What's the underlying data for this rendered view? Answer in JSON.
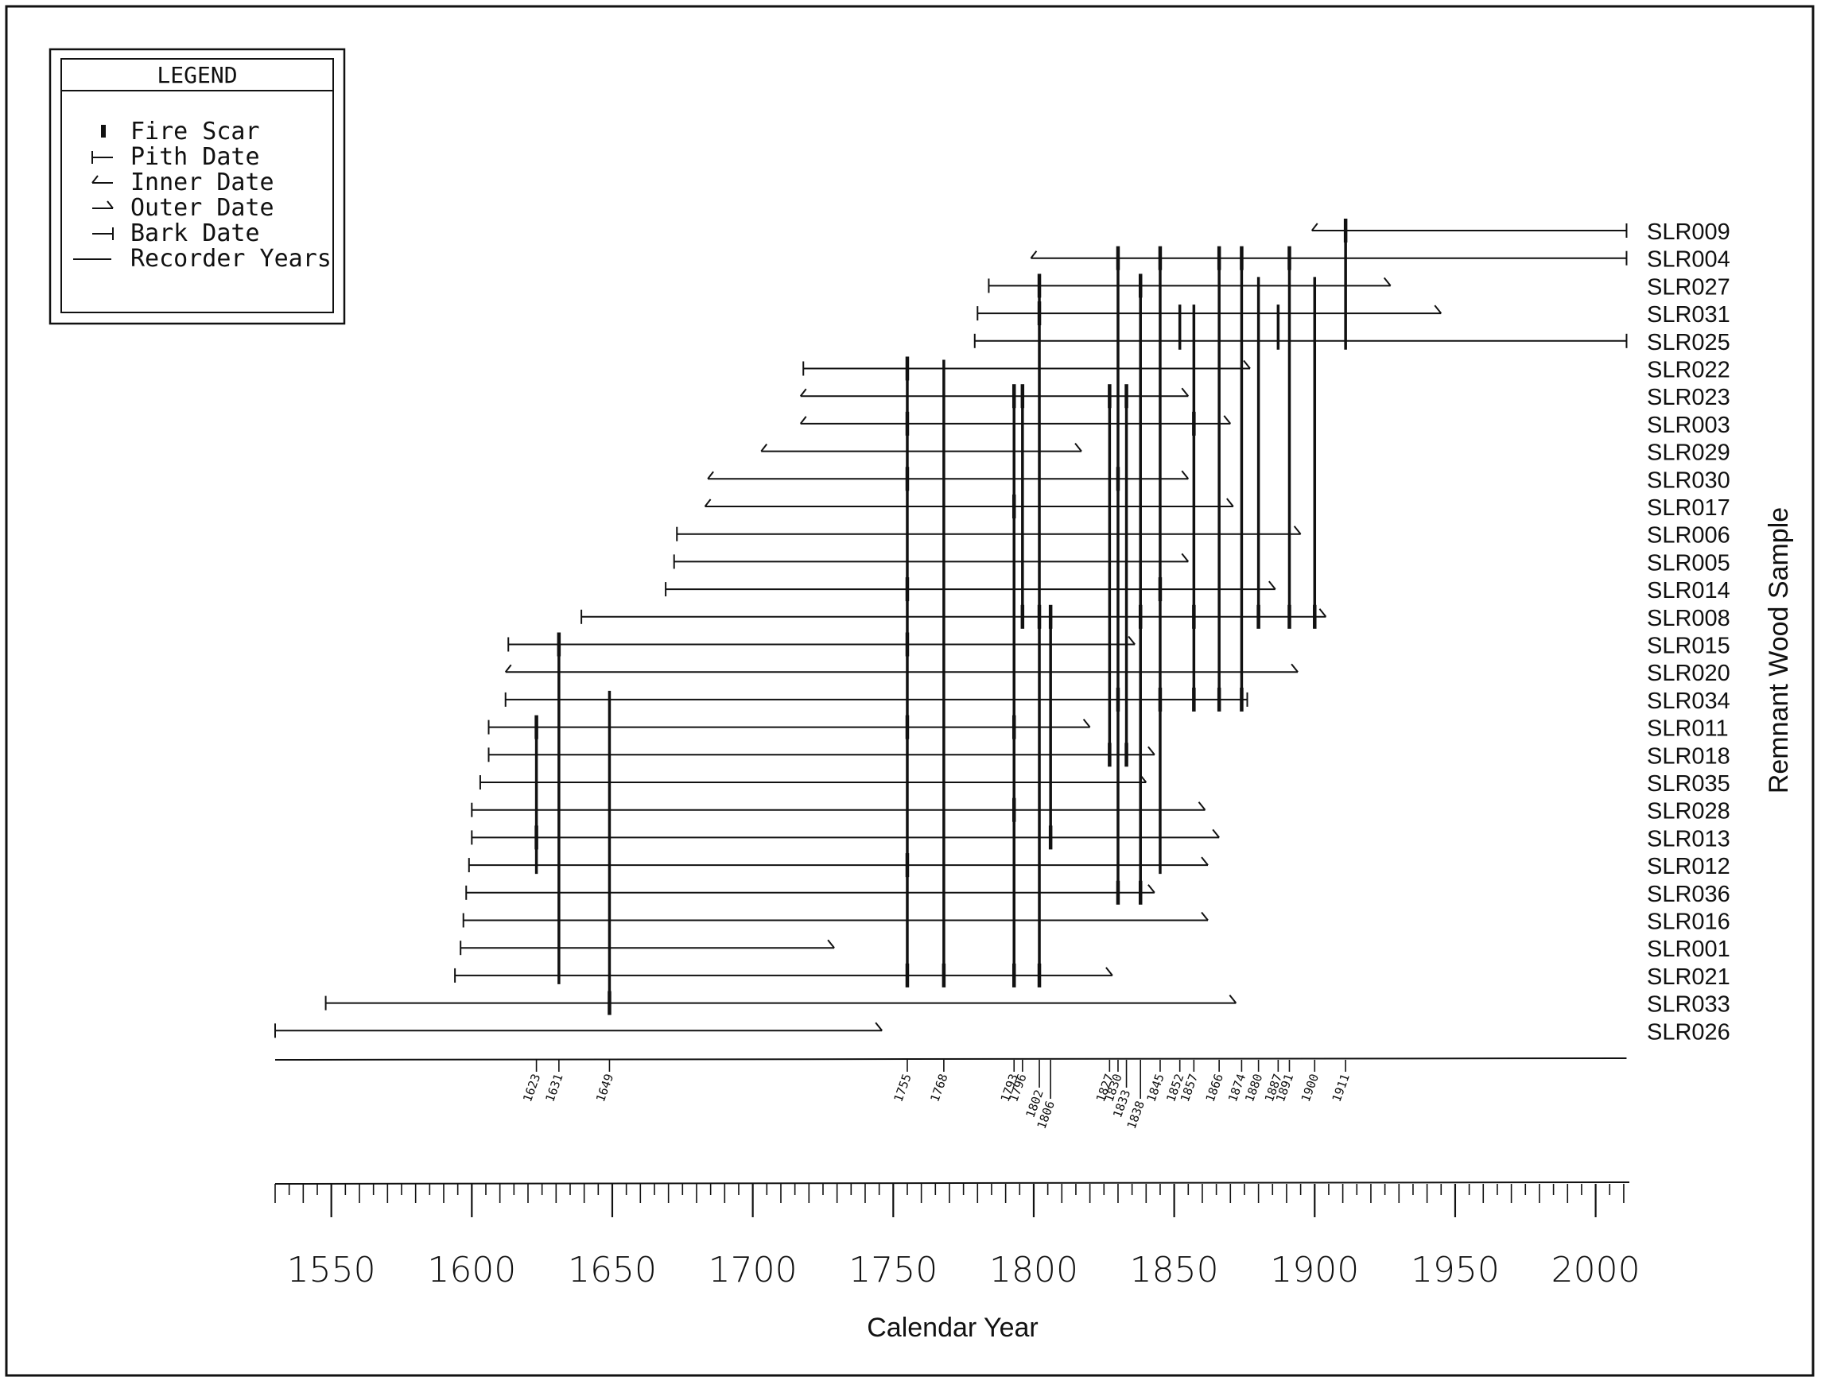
{
  "legend": {
    "title": "LEGEND",
    "items": [
      {
        "symbol": "fire-scar",
        "label": "Fire  Scar"
      },
      {
        "symbol": "pith-date",
        "label": "Pith  Date"
      },
      {
        "symbol": "inner-date",
        "label": "Inner  Date"
      },
      {
        "symbol": "outer-date",
        "label": "Outer  Date"
      },
      {
        "symbol": "bark-date",
        "label": "Bark  Date"
      },
      {
        "symbol": "recorder-years",
        "label": "Recorder Years"
      }
    ]
  },
  "chart_data": {
    "type": "fire-history-chart",
    "xlabel": "Calendar Year",
    "ylabel": "Remnant Wood Sample",
    "xlim": [
      1530,
      2012
    ],
    "x_ticks": [
      1550,
      1600,
      1650,
      1700,
      1750,
      1800,
      1850,
      1900,
      1950,
      2000
    ],
    "composite_fire_years": [
      1623,
      1631,
      1649,
      1755,
      1768,
      1793,
      1796,
      1802,
      1806,
      1827,
      1830,
      1833,
      1838,
      1845,
      1852,
      1857,
      1866,
      1874,
      1880,
      1887,
      1891,
      1900,
      1911
    ],
    "samples": [
      {
        "id": "SLR009",
        "start": 1899,
        "start_type": "inner",
        "end": 2011,
        "end_type": "bark",
        "scars": [
          1911
        ],
        "connections": []
      },
      {
        "id": "SLR004",
        "start": 1799,
        "start_type": "inner",
        "end": 2011,
        "end_type": "bark",
        "scars": [
          1830,
          1845,
          1866,
          1874,
          1891
        ],
        "connections": [
          1911
        ]
      },
      {
        "id": "SLR027",
        "start": 1784,
        "start_type": "pith",
        "end": 1927,
        "end_type": "outer",
        "scars": [
          1802,
          1838
        ],
        "connections": [
          1830,
          1845,
          1874,
          1880,
          1891,
          1900
        ]
      },
      {
        "id": "SLR031",
        "start": 1780,
        "start_type": "pith",
        "end": 1945,
        "end_type": "outer",
        "scars": [
          1802
        ],
        "connections": [
          1845,
          1852,
          1857,
          1866,
          1874,
          1880,
          1887,
          1891,
          1900,
          1911
        ]
      },
      {
        "id": "SLR025",
        "start": 1779,
        "start_type": "pith",
        "end": 2011,
        "end_type": "bark",
        "scars": [],
        "connections": [
          1845,
          1852,
          1857,
          1866,
          1874,
          1880,
          1887,
          1891,
          1900,
          1911
        ]
      },
      {
        "id": "SLR022",
        "start": 1718,
        "start_type": "pith",
        "end": 1877,
        "end_type": "outer",
        "scars": [
          1755
        ],
        "connections": [
          1768,
          1802,
          1830,
          1845,
          1866
        ]
      },
      {
        "id": "SLR023",
        "start": 1717,
        "start_type": "inner",
        "end": 1855,
        "end_type": "outer",
        "scars": [
          1793,
          1796,
          1827,
          1833
        ],
        "connections": [
          1768,
          1802,
          1830,
          1845
        ]
      },
      {
        "id": "SLR003",
        "start": 1717,
        "start_type": "inner",
        "end": 1870,
        "end_type": "outer",
        "scars": [
          1755,
          1857
        ],
        "connections": [
          1768,
          1796,
          1802,
          1827,
          1838,
          1845
        ]
      },
      {
        "id": "SLR029",
        "start": 1703,
        "start_type": "inner",
        "end": 1817,
        "end_type": "outer",
        "scars": [],
        "connections": [
          1768
        ]
      },
      {
        "id": "SLR030",
        "start": 1684,
        "start_type": "inner",
        "end": 1855,
        "end_type": "outer",
        "scars": [
          1755,
          1830
        ],
        "connections": [
          1802
        ]
      },
      {
        "id": "SLR017",
        "start": 1683,
        "start_type": "inner",
        "end": 1871,
        "end_type": "outer",
        "scars": [
          1793
        ],
        "connections": [
          1768,
          1802
        ]
      },
      {
        "id": "SLR006",
        "start": 1673,
        "start_type": "pith",
        "end": 1895,
        "end_type": "outer",
        "scars": [],
        "connections": [
          1768
        ]
      },
      {
        "id": "SLR005",
        "start": 1672,
        "start_type": "pith",
        "end": 1855,
        "end_type": "outer",
        "scars": [],
        "connections": [
          1768,
          1793
        ]
      },
      {
        "id": "SLR014",
        "start": 1669,
        "start_type": "pith",
        "end": 1886,
        "end_type": "outer",
        "scars": [
          1755,
          1845
        ],
        "connections": [
          1768
        ]
      },
      {
        "id": "SLR008",
        "start": 1639,
        "start_type": "pith",
        "end": 1904,
        "end_type": "outer",
        "scars": [
          1796,
          1802,
          1806,
          1838,
          1857,
          1880,
          1891,
          1900
        ],
        "connections": [
          1768
        ]
      },
      {
        "id": "SLR015",
        "start": 1613,
        "start_type": "pith",
        "end": 1836,
        "end_type": "outer",
        "scars": [
          1631,
          1755
        ],
        "connections": [
          1768,
          1802
        ]
      },
      {
        "id": "SLR020",
        "start": 1612,
        "start_type": "inner",
        "end": 1894,
        "end_type": "outer",
        "scars": [],
        "connections": [
          1768,
          1802
        ]
      },
      {
        "id": "SLR034",
        "start": 1612,
        "start_type": "pith",
        "end": 1876,
        "end_type": "bark",
        "scars": [
          1830,
          1845,
          1857,
          1866,
          1874
        ],
        "connections": [
          1631,
          1649,
          1768,
          1802
        ]
      },
      {
        "id": "SLR011",
        "start": 1606,
        "start_type": "pith",
        "end": 1820,
        "end_type": "outer",
        "scars": [
          1623,
          1755,
          1793
        ],
        "connections": [
          1631,
          1649,
          1768,
          1802
        ]
      },
      {
        "id": "SLR018",
        "start": 1606,
        "start_type": "pith",
        "end": 1843,
        "end_type": "outer",
        "scars": [
          1827,
          1833
        ],
        "connections": [
          1623,
          1631,
          1649,
          1768,
          1802
        ]
      },
      {
        "id": "SLR035",
        "start": 1603,
        "start_type": "pith",
        "end": 1840,
        "end_type": "outer",
        "scars": [],
        "connections": [
          1631,
          1649,
          1768,
          1802
        ]
      },
      {
        "id": "SLR028",
        "start": 1600,
        "start_type": "pith",
        "end": 1861,
        "end_type": "outer",
        "scars": [
          1793
        ],
        "connections": [
          1631,
          1649,
          1768
        ]
      },
      {
        "id": "SLR013",
        "start": 1600,
        "start_type": "pith",
        "end": 1866,
        "end_type": "outer",
        "scars": [
          1623,
          1806
        ],
        "connections": [
          1631,
          1649,
          1768,
          1793,
          1802,
          1845
        ]
      },
      {
        "id": "SLR012",
        "start": 1599,
        "start_type": "pith",
        "end": 1862,
        "end_type": "outer",
        "scars": [
          1755
        ],
        "connections": [
          1623,
          1631,
          1649,
          1768,
          1802,
          1845
        ]
      },
      {
        "id": "SLR036",
        "start": 1598,
        "start_type": "pith",
        "end": 1843,
        "end_type": "outer",
        "scars": [
          1830,
          1838
        ],
        "connections": [
          1631,
          1649,
          1768
        ]
      },
      {
        "id": "SLR016",
        "start": 1597,
        "start_type": "pith",
        "end": 1862,
        "end_type": "outer",
        "scars": [],
        "connections": [
          1631,
          1649,
          1768
        ]
      },
      {
        "id": "SLR001",
        "start": 1596,
        "start_type": "pith",
        "end": 1729,
        "end_type": "outer",
        "scars": [],
        "connections": [
          1631
        ]
      },
      {
        "id": "SLR021",
        "start": 1594,
        "start_type": "pith",
        "end": 1828,
        "end_type": "outer",
        "scars": [
          1755,
          1768,
          1793,
          1802
        ],
        "connections": [
          1631
        ]
      },
      {
        "id": "SLR033",
        "start": 1548,
        "start_type": "pith",
        "end": 1872,
        "end_type": "outer",
        "scars": [
          1649
        ],
        "connections": []
      },
      {
        "id": "SLR026",
        "start": 1530,
        "start_type": "pith",
        "end": 1746,
        "end_type": "outer",
        "scars": [],
        "connections": []
      }
    ]
  }
}
